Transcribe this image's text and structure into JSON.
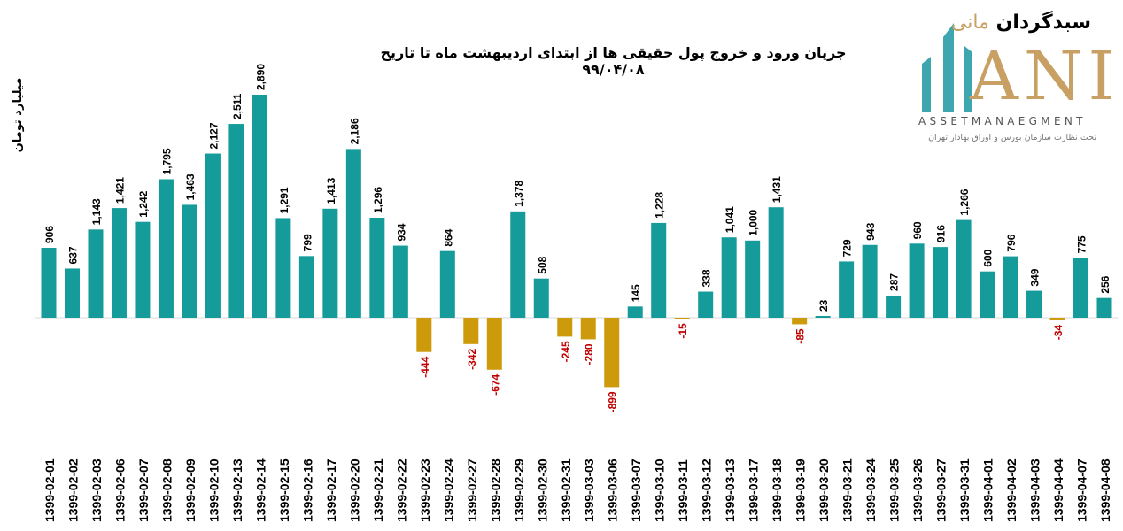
{
  "chart_data": {
    "type": "bar",
    "title": "جریان ورود و خروج پول حقیقی ها از ابتدای اردیبهشت ماه تا تاریخ ۹۹/۰۴/۰۸",
    "xlabel": "",
    "ylabel": "میلیارد تومان",
    "categories": [
      "1399-02-01",
      "1399-02-02",
      "1399-02-03",
      "1399-02-06",
      "1399-02-07",
      "1399-02-08",
      "1399-02-09",
      "1399-02-10",
      "1399-02-13",
      "1399-02-14",
      "1399-02-15",
      "1399-02-16",
      "1399-02-17",
      "1399-02-20",
      "1399-02-21",
      "1399-02-22",
      "1399-02-23",
      "1399-02-24",
      "1399-02-27",
      "1399-02-28",
      "1399-02-29",
      "1399-02-30",
      "1399-02-31",
      "1399-03-03",
      "1399-03-06",
      "1399-03-07",
      "1399-03-10",
      "1399-03-11",
      "1399-03-12",
      "1399-03-13",
      "1399-03-17",
      "1399-03-18",
      "1399-03-19",
      "1399-03-20",
      "1399-03-21",
      "1399-03-24",
      "1399-03-25",
      "1399-03-26",
      "1399-03-27",
      "1399-03-31",
      "1399-04-01",
      "1399-04-02",
      "1399-04-03",
      "1399-04-04",
      "1399-04-07",
      "1399-04-08"
    ],
    "values": [
      906,
      637,
      1143,
      1421,
      1242,
      1795,
      1463,
      2127,
      2511,
      2890,
      1291,
      799,
      1413,
      2186,
      1296,
      934,
      -444,
      864,
      -342,
      -674,
      1378,
      508,
      -245,
      -280,
      -899,
      145,
      1228,
      -15,
      338,
      1041,
      1000,
      1431,
      -85,
      23,
      729,
      943,
      287,
      960,
      916,
      1266,
      600,
      796,
      349,
      -34,
      775,
      256
    ],
    "ylim": [
      -1200,
      3100
    ],
    "grid": false,
    "colors": {
      "positive": "#149b9a",
      "negative": "#cc9a0a",
      "negative_label": "#c00000",
      "positive_label": "#000000"
    }
  },
  "logo": {
    "fa_name_1": "سبدگردان",
    "fa_name_2": "مانی",
    "mark": "ANI",
    "en": "ASSETMANAEGMENT",
    "sub": "تحت نظارت سازمان بورس و اوراق بهادار تهران",
    "teal": "#3ea6ae",
    "gold": "#c9a063"
  }
}
